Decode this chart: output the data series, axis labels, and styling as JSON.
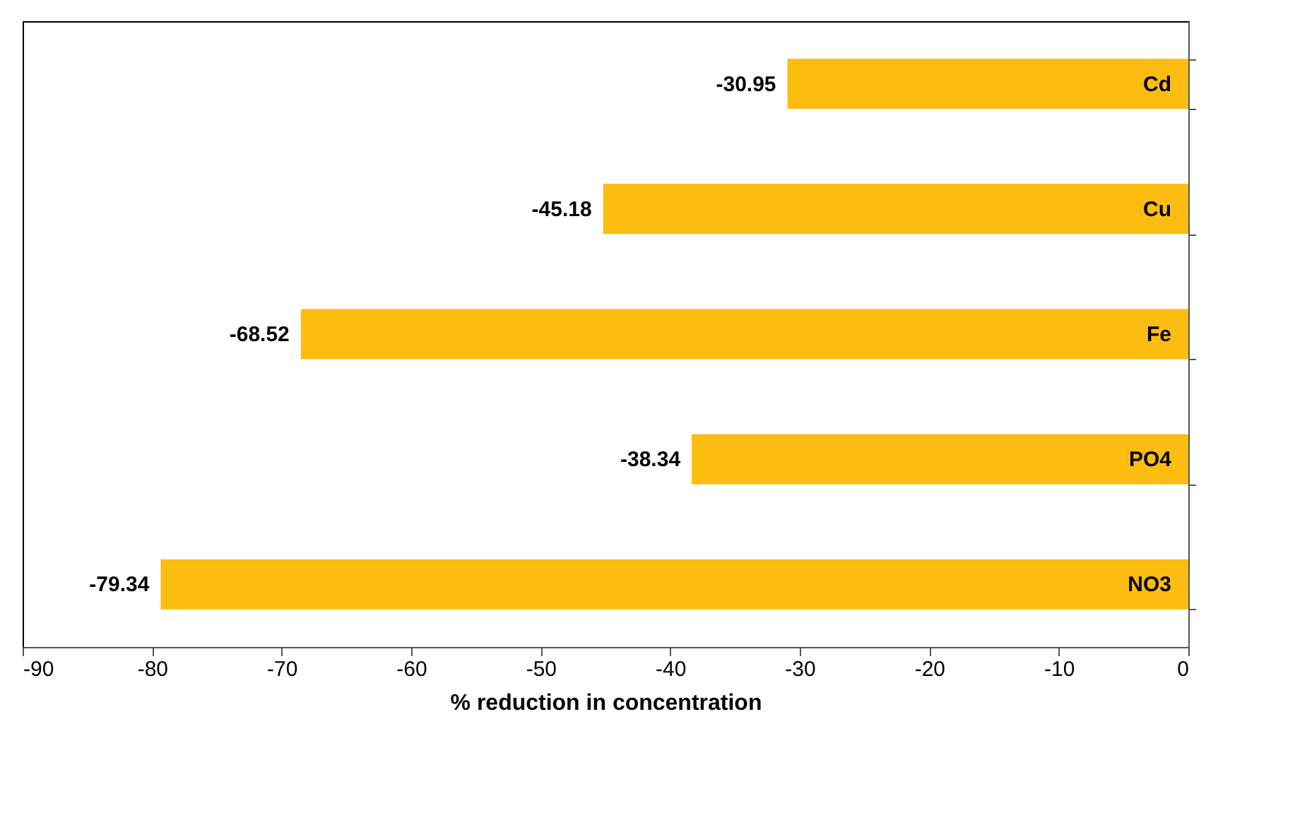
{
  "chart_data": {
    "type": "bar",
    "orientation": "horizontal",
    "xlabel": "% reduction in concentration",
    "categories": [
      "Cd",
      "Cu",
      "Fe",
      "PO4",
      "NO3"
    ],
    "values": [
      -30.95,
      -45.18,
      -68.52,
      -38.34,
      -79.34
    ],
    "color": "#fdbd10",
    "data_labels": true,
    "xlim": [
      -90,
      0
    ],
    "xticks": [
      -90,
      -80,
      -70,
      -60,
      -50,
      -40,
      -30,
      -20,
      -10,
      0
    ],
    "grid": false
  }
}
